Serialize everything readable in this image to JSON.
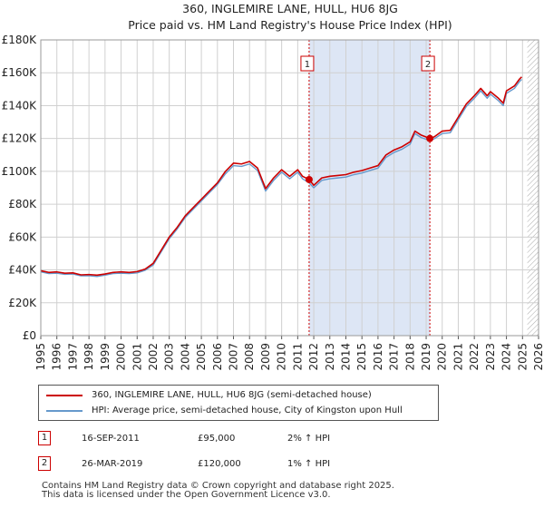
{
  "chart_data": {
    "type": "line",
    "title": "360, INGLEMIRE LANE, HULL, HU6 8JG",
    "subtitle": "Price paid vs. HM Land Registry's House Price Index (HPI)",
    "xlim": [
      1995,
      2026
    ],
    "ylim": [
      0,
      180000
    ],
    "x_ticks": [
      "1995",
      "1996",
      "1997",
      "1998",
      "1999",
      "2000",
      "2001",
      "2002",
      "2003",
      "2004",
      "2005",
      "2006",
      "2007",
      "2008",
      "2009",
      "2010",
      "2011",
      "2012",
      "2013",
      "2014",
      "2015",
      "2016",
      "2017",
      "2018",
      "2019",
      "2020",
      "2021",
      "2022",
      "2023",
      "2024",
      "2025",
      "2026"
    ],
    "y_ticks": [
      {
        "value": 0,
        "label": "£0"
      },
      {
        "value": 20000,
        "label": "£20K"
      },
      {
        "value": 40000,
        "label": "£40K"
      },
      {
        "value": 60000,
        "label": "£60K"
      },
      {
        "value": 80000,
        "label": "£80K"
      },
      {
        "value": 100000,
        "label": "£100K"
      },
      {
        "value": 120000,
        "label": "£120K"
      },
      {
        "value": 140000,
        "label": "£140K"
      },
      {
        "value": 160000,
        "label": "£160K"
      },
      {
        "value": 180000,
        "label": "£180K"
      }
    ],
    "shaded_region": [
      2011.71,
      2019.23
    ],
    "hatched_from": 2025.3,
    "series": [
      {
        "name": "360, INGLEMIRE LANE, HULL, HU6 8JG (semi-detached house)",
        "color": "#cc0000",
        "points": [
          [
            1995,
            39500
          ],
          [
            1995.5,
            38500
          ],
          [
            1996,
            38800
          ],
          [
            1996.5,
            38000
          ],
          [
            1997,
            38200
          ],
          [
            1997.5,
            37000
          ],
          [
            1998,
            37200
          ],
          [
            1998.5,
            36800
          ],
          [
            1999,
            37500
          ],
          [
            1999.5,
            38500
          ],
          [
            2000,
            38800
          ],
          [
            2000.5,
            38500
          ],
          [
            2001,
            39000
          ],
          [
            2001.5,
            40500
          ],
          [
            2002,
            44000
          ],
          [
            2002.5,
            52000
          ],
          [
            2003,
            60000
          ],
          [
            2003.5,
            66000
          ],
          [
            2004,
            73000
          ],
          [
            2004.5,
            78000
          ],
          [
            2005,
            83000
          ],
          [
            2005.5,
            88000
          ],
          [
            2006,
            93000
          ],
          [
            2006.5,
            100000
          ],
          [
            2007,
            105000
          ],
          [
            2007.5,
            104500
          ],
          [
            2008,
            106000
          ],
          [
            2008.5,
            102000
          ],
          [
            2009,
            89500
          ],
          [
            2009.5,
            96000
          ],
          [
            2010,
            101000
          ],
          [
            2010.5,
            97000
          ],
          [
            2011,
            101000
          ],
          [
            2011.3,
            97000
          ],
          [
            2011.71,
            95000
          ],
          [
            2012,
            91500
          ],
          [
            2012.5,
            96000
          ],
          [
            2013,
            97000
          ],
          [
            2013.5,
            97500
          ],
          [
            2014,
            98000
          ],
          [
            2014.5,
            99500
          ],
          [
            2015,
            100500
          ],
          [
            2015.5,
            102000
          ],
          [
            2016,
            103500
          ],
          [
            2016.5,
            110000
          ],
          [
            2017,
            113000
          ],
          [
            2017.5,
            115000
          ],
          [
            2018,
            118000
          ],
          [
            2018.3,
            124500
          ],
          [
            2018.7,
            122000
          ],
          [
            2019.23,
            120000
          ],
          [
            2019.5,
            121000
          ],
          [
            2020,
            124500
          ],
          [
            2020.5,
            125000
          ],
          [
            2021,
            133000
          ],
          [
            2021.5,
            141000
          ],
          [
            2022,
            146000
          ],
          [
            2022.4,
            150500
          ],
          [
            2022.8,
            146000
          ],
          [
            2023,
            148500
          ],
          [
            2023.5,
            144500
          ],
          [
            2023.8,
            141500
          ],
          [
            2024,
            149000
          ],
          [
            2024.5,
            152000
          ],
          [
            2024.8,
            156000
          ],
          [
            2024.95,
            157500
          ]
        ]
      },
      {
        "name": "HPI: Average price, semi-detached house, City of Kingston upon Hull",
        "color": "#6699cc",
        "points": [
          [
            1995,
            38800
          ],
          [
            1995.5,
            37800
          ],
          [
            1996,
            38000
          ],
          [
            1996.5,
            37300
          ],
          [
            1997,
            37500
          ],
          [
            1997.5,
            36400
          ],
          [
            1998,
            36500
          ],
          [
            1998.5,
            36000
          ],
          [
            1999,
            36800
          ],
          [
            1999.5,
            37800
          ],
          [
            2000,
            38000
          ],
          [
            2000.5,
            37800
          ],
          [
            2001,
            38200
          ],
          [
            2001.5,
            39800
          ],
          [
            2002,
            43000
          ],
          [
            2002.5,
            51000
          ],
          [
            2003,
            59000
          ],
          [
            2003.5,
            65000
          ],
          [
            2004,
            72000
          ],
          [
            2004.5,
            77000
          ],
          [
            2005,
            82000
          ],
          [
            2005.5,
            87000
          ],
          [
            2006,
            92000
          ],
          [
            2006.5,
            98500
          ],
          [
            2007,
            103500
          ],
          [
            2007.5,
            103000
          ],
          [
            2008,
            104500
          ],
          [
            2008.5,
            100500
          ],
          [
            2009,
            88000
          ],
          [
            2009.5,
            94500
          ],
          [
            2010,
            99500
          ],
          [
            2010.5,
            95500
          ],
          [
            2011,
            99500
          ],
          [
            2011.3,
            95500
          ],
          [
            2011.71,
            93000
          ],
          [
            2012,
            90000
          ],
          [
            2012.5,
            94500
          ],
          [
            2013,
            95500
          ],
          [
            2013.5,
            96000
          ],
          [
            2014,
            96500
          ],
          [
            2014.5,
            98000
          ],
          [
            2015,
            99000
          ],
          [
            2015.5,
            100500
          ],
          [
            2016,
            102000
          ],
          [
            2016.5,
            108500
          ],
          [
            2017,
            111500
          ],
          [
            2017.5,
            113500
          ],
          [
            2018,
            116500
          ],
          [
            2018.3,
            123000
          ],
          [
            2018.7,
            120500
          ],
          [
            2019.23,
            118800
          ],
          [
            2019.5,
            119800
          ],
          [
            2020,
            123000
          ],
          [
            2020.5,
            123500
          ],
          [
            2021,
            131500
          ],
          [
            2021.5,
            139500
          ],
          [
            2022,
            144500
          ],
          [
            2022.4,
            149000
          ],
          [
            2022.8,
            144500
          ],
          [
            2023,
            147000
          ],
          [
            2023.5,
            143000
          ],
          [
            2023.8,
            140000
          ],
          [
            2024,
            147500
          ],
          [
            2024.5,
            150500
          ],
          [
            2024.8,
            154500
          ],
          [
            2024.95,
            156000
          ]
        ]
      }
    ],
    "markers": [
      {
        "label": "1",
        "x": 2011.71,
        "y": 95000
      },
      {
        "label": "2",
        "x": 2019.23,
        "y": 120000
      }
    ]
  },
  "legend": [
    {
      "label": "360, INGLEMIRE LANE, HULL, HU6 8JG (semi-detached house)",
      "color": "#cc0000"
    },
    {
      "label": "HPI: Average price, semi-detached house, City of Kingston upon Hull",
      "color": "#6699cc"
    }
  ],
  "transactions": [
    {
      "num": "1",
      "date": "16-SEP-2011",
      "price": "£95,000",
      "hpi": "2% ↑ HPI"
    },
    {
      "num": "2",
      "date": "26-MAR-2019",
      "price": "£120,000",
      "hpi": "1% ↑ HPI"
    }
  ],
  "footer": {
    "line1": "Contains HM Land Registry data © Crown copyright and database right 2025.",
    "line2": "This data is licensed under the Open Government Licence v3.0."
  }
}
